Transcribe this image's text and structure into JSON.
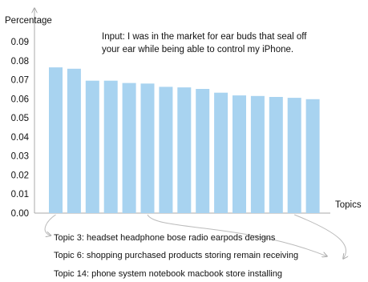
{
  "chart_data": {
    "type": "bar",
    "ylabel": "Percentage",
    "xlabel": "Topics",
    "ylim": [
      0,
      0.09
    ],
    "yticks": [
      "0.00",
      "0.01",
      "0.02",
      "0.03",
      "0.04",
      "0.05",
      "0.06",
      "0.07",
      "0.08",
      "0.09"
    ],
    "values": [
      0.0765,
      0.0758,
      0.0695,
      0.0695,
      0.0683,
      0.068,
      0.0663,
      0.066,
      0.0652,
      0.0632,
      0.0618,
      0.0615,
      0.061,
      0.0605,
      0.0598
    ],
    "bar_color": "#a8d3f0",
    "annotation": {
      "line1": "Input: I was in the market for ear buds that seal off",
      "line2": "your ear while being able to control my iPhone."
    },
    "topics": [
      {
        "label": "Topic 3: headset headphone bose radio earpods designs",
        "bar_index": 0
      },
      {
        "label": "Topic 6: shopping purchased products storing remain receiving",
        "bar_index": 5
      },
      {
        "label": "Topic 14: phone system notebook macbook store installing",
        "bar_index": 13
      }
    ]
  }
}
